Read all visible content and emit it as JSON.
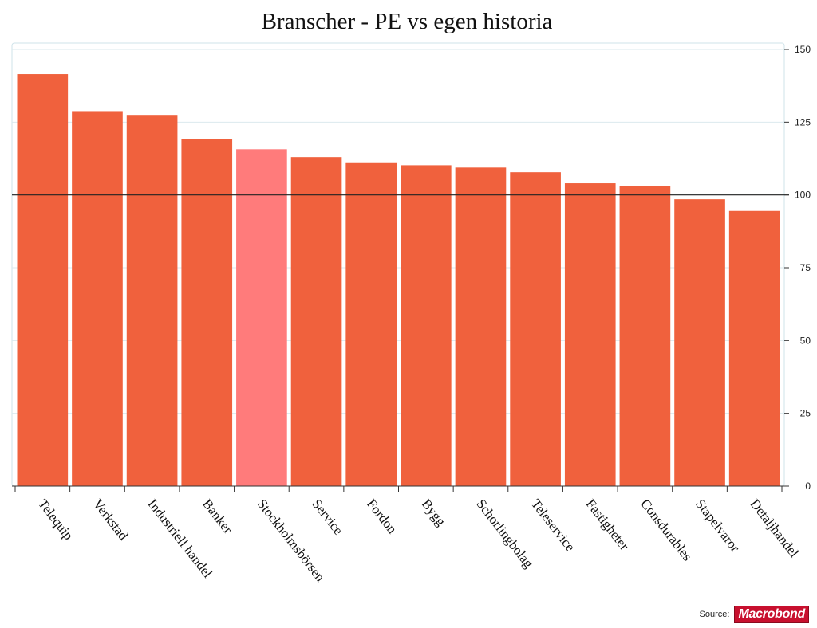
{
  "chart_data": {
    "type": "bar",
    "title": "Branscher - PE vs egen historia",
    "categories": [
      "Telequip",
      "Verkstad",
      "Industriell handel",
      "Banker",
      "Stockholmsbörsen",
      "Service",
      "Fordon",
      "Bygg",
      "Schorlingbolag",
      "Teleservice",
      "Fastigheter",
      "Consdurables",
      "Stapelvaror",
      "Detaljhandel"
    ],
    "values": [
      141.5,
      128.8,
      127.5,
      119.3,
      115.7,
      113.0,
      111.2,
      110.2,
      109.4,
      107.8,
      104.0,
      103.0,
      98.5,
      94.5
    ],
    "highlight": [
      "Stockholmsbörsen"
    ],
    "reference_line": 100,
    "ylim": [
      0,
      150
    ],
    "yticks": [
      0,
      25,
      50,
      75,
      100,
      125,
      150
    ],
    "y_axis_side": "right",
    "grid": true,
    "colors": {
      "bar": "#f0613d",
      "highlight": "#ff7b7b",
      "grid": "#dbe9ee",
      "reference": "#222222"
    }
  },
  "footer": {
    "source_label": "Source:",
    "logo_text": "Macrobond"
  }
}
